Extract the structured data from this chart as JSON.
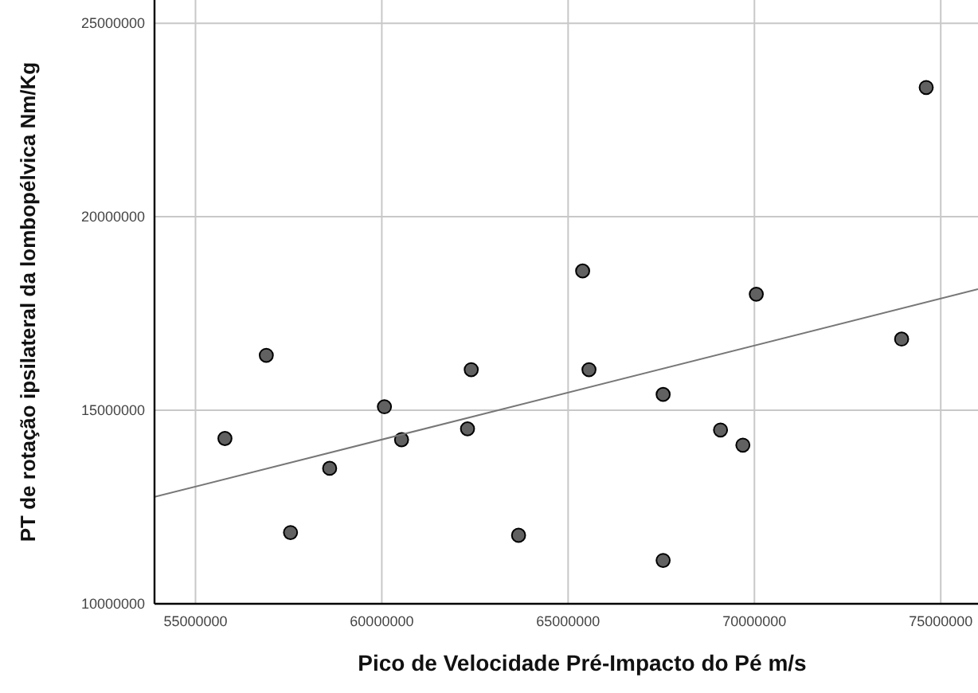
{
  "chart_data": {
    "type": "scatter",
    "xlabel": "Pico de Velocidade Pré-Impacto do Pé  m/s",
    "ylabel": "PT de rotação ipsilateral da lombopélvica  Nm/Kg",
    "xlim": [
      53900000,
      76000000
    ],
    "xticks": [
      55000000,
      60000000,
      65000000,
      70000000,
      75000000
    ],
    "ylim": [
      10000000,
      25600000
    ],
    "yticks": [
      10000000,
      15000000,
      20000000,
      25000000
    ],
    "grid": true,
    "series": [
      {
        "marker": "circle",
        "color": "#616161",
        "x": [
          55790000,
          56900000,
          57550000,
          58600000,
          60070000,
          60530000,
          62300000,
          62400000,
          63670000,
          65390000,
          65560000,
          67550000,
          67550000,
          69090000,
          69690000,
          70050000,
          73950000,
          74610000
        ],
        "values": [
          14270000,
          16420000,
          11840000,
          13500000,
          15090000,
          14240000,
          14520000,
          16050000,
          11770000,
          18600000,
          16050000,
          15410000,
          11120000,
          14490000,
          14100000,
          18000000,
          16840000,
          23340000
        ]
      },
      {
        "type": "line",
        "color": "#777777",
        "x": [
          53900000,
          76000000
        ],
        "values": [
          12760000,
          18130000
        ]
      }
    ]
  }
}
